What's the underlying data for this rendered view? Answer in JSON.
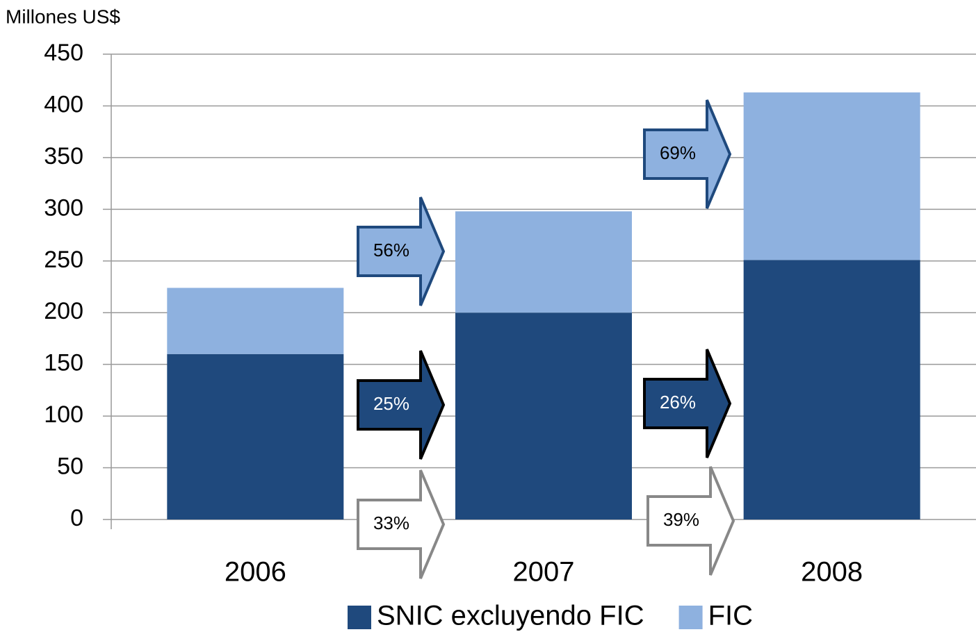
{
  "chart_data": {
    "type": "stacked_bar",
    "y_axis_label": "Millones US$",
    "categories": [
      "2006",
      "2007",
      "2008"
    ],
    "series": [
      {
        "name": "SNIC excluyendo FIC",
        "color": "#1f497d",
        "values": [
          160,
          200,
          251
        ]
      },
      {
        "name": "FIC",
        "color": "#8eb1df",
        "values": [
          64,
          98,
          162
        ]
      }
    ],
    "ylim": [
      0,
      450
    ],
    "yticks": [
      0,
      50,
      100,
      150,
      200,
      250,
      300,
      350,
      400,
      450
    ],
    "grid": true,
    "annotations": [
      "56%",
      "25%",
      "33%",
      "69%",
      "26%",
      "39%"
    ]
  }
}
